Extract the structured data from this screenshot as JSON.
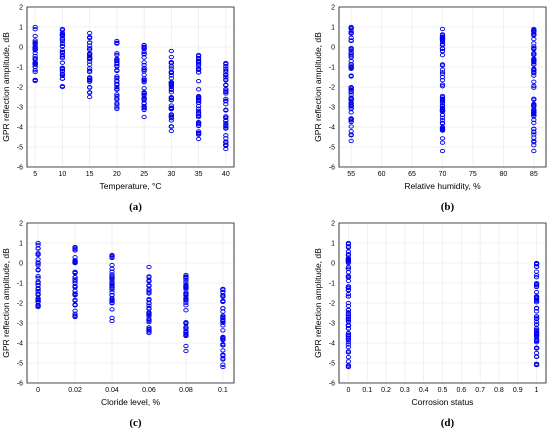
{
  "chart_data": [
    {
      "id": "a",
      "type": "scatter",
      "caption": "(a)",
      "xlabel": "Temperature, °C",
      "ylabel": "GPR reflection amplitude, dB",
      "xlim": [
        3.5,
        41.5
      ],
      "ylim": [
        -6,
        2
      ],
      "xticks": [
        5,
        10,
        15,
        20,
        25,
        30,
        35,
        40
      ],
      "yticks": [
        -6,
        -5,
        -4,
        -3,
        -2,
        -1,
        0,
        1,
        2
      ],
      "grid": true,
      "marker": "circle",
      "color": "#0000ee",
      "point_ranges": [
        {
          "x": 5,
          "y_min": -1.7,
          "y_max": 1.0
        },
        {
          "x": 10,
          "y_min": -2.0,
          "y_max": 0.9
        },
        {
          "x": 15,
          "y_min": -2.5,
          "y_max": 0.7
        },
        {
          "x": 20,
          "y_min": -3.1,
          "y_max": 0.3
        },
        {
          "x": 25,
          "y_min": -3.5,
          "y_max": 0.1
        },
        {
          "x": 30,
          "y_min": -4.2,
          "y_max": -0.2
        },
        {
          "x": 35,
          "y_min": -4.6,
          "y_max": -0.4
        },
        {
          "x": 40,
          "y_min": -5.1,
          "y_max": -0.8
        }
      ]
    },
    {
      "id": "b",
      "type": "scatter",
      "caption": "(b)",
      "xlabel": "Relative humidity, %",
      "ylabel": "GPR reflection amplitude, dB",
      "xlim": [
        53,
        87
      ],
      "ylim": [
        -6,
        2
      ],
      "xticks": [
        55,
        60,
        65,
        70,
        75,
        80,
        85
      ],
      "yticks": [
        -6,
        -5,
        -4,
        -3,
        -2,
        -1,
        0,
        1,
        2
      ],
      "grid": true,
      "marker": "circle",
      "color": "#0000ee",
      "point_ranges": [
        {
          "x": 55,
          "y_min": -4.7,
          "y_max": 1.0
        },
        {
          "x": 70,
          "y_min": -5.2,
          "y_max": 0.9
        },
        {
          "x": 85,
          "y_min": -5.2,
          "y_max": 0.9
        }
      ]
    },
    {
      "id": "c",
      "type": "scatter",
      "caption": "(c)",
      "xlabel": "Cloride level, %",
      "ylabel": "GPR reflection amplitude, dB",
      "xlim": [
        -0.006,
        0.106
      ],
      "ylim": [
        -6,
        2
      ],
      "xticks": [
        0,
        0.02,
        0.04,
        0.06,
        0.08,
        0.1
      ],
      "xtick_labels": [
        "0",
        "0.02",
        "0.04",
        "0.06",
        "0.08",
        "0.1"
      ],
      "yticks": [
        -6,
        -5,
        -4,
        -3,
        -2,
        -1,
        0,
        1,
        2
      ],
      "grid": true,
      "marker": "circle",
      "color": "#0000ee",
      "point_ranges": [
        {
          "x": 0,
          "y_min": -2.2,
          "y_max": 1.0
        },
        {
          "x": 0.02,
          "y_min": -2.7,
          "y_max": 0.8
        },
        {
          "x": 0.04,
          "y_min": -2.9,
          "y_max": 0.4
        },
        {
          "x": 0.06,
          "y_min": -3.5,
          "y_max": -0.2
        },
        {
          "x": 0.08,
          "y_min": -4.4,
          "y_max": -0.6
        },
        {
          "x": 0.1,
          "y_min": -5.2,
          "y_max": -1.3
        }
      ]
    },
    {
      "id": "d",
      "type": "scatter",
      "caption": "(d)",
      "xlabel": "Corrosion status",
      "ylabel": "GPR reflection amplitude, dB",
      "xlim": [
        -0.05,
        1.05
      ],
      "ylim": [
        -6,
        2
      ],
      "xticks": [
        0,
        0.1,
        0.2,
        0.3,
        0.4,
        0.5,
        0.6,
        0.7,
        0.8,
        0.9,
        1
      ],
      "xtick_labels": [
        "0",
        "0.1",
        "0.2",
        "0.3",
        "0.4",
        "0.5",
        "0.6",
        "0.7",
        "0.8",
        "0.9",
        "1"
      ],
      "yticks": [
        -6,
        -5,
        -4,
        -3,
        -2,
        -1,
        0,
        1,
        2
      ],
      "grid": true,
      "marker": "circle",
      "color": "#0000ee",
      "point_ranges": [
        {
          "x": 0,
          "y_min": -5.2,
          "y_max": 1.0
        },
        {
          "x": 1,
          "y_min": -5.1,
          "y_max": 0.0
        }
      ]
    }
  ]
}
